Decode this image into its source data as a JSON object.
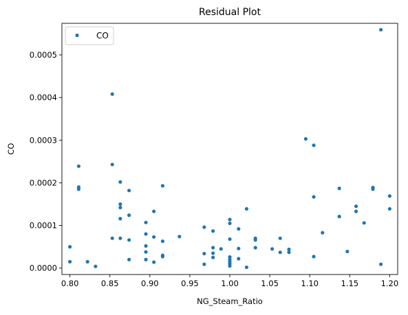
{
  "chart_data": {
    "type": "scatter",
    "title": "Residual Plot",
    "xlabel": "NG_Steam_Ratio",
    "ylabel": "CO",
    "xlim": [
      0.79,
      1.21
    ],
    "ylim": [
      -1.5e-05,
      0.000574
    ],
    "x_ticks": [
      0.8,
      0.85,
      0.9,
      0.95,
      1.0,
      1.05,
      1.1,
      1.15,
      1.2
    ],
    "x_tick_labels": [
      "0.80",
      "0.85",
      "0.90",
      "0.95",
      "1.00",
      "1.05",
      "1.10",
      "1.15",
      "1.20"
    ],
    "y_ticks": [
      0,
      0.0001,
      0.0002,
      0.0003,
      0.0004,
      0.0005
    ],
    "y_tick_labels": [
      "0.0000",
      "0.0001",
      "0.0002",
      "0.0003",
      "0.0004",
      "0.0005"
    ],
    "grid": false,
    "legend_position": "top-left",
    "series": [
      {
        "name": "CO",
        "color": "#1f77b4",
        "points": [
          [
            0.8,
            5e-05
          ],
          [
            0.8,
            1.5e-05
          ],
          [
            0.811,
            0.000239
          ],
          [
            0.811,
            0.00019
          ],
          [
            0.811,
            0.000185
          ],
          [
            0.822,
            1.5e-05
          ],
          [
            0.832,
            4e-06
          ],
          [
            0.853,
            0.000408
          ],
          [
            0.853,
            0.000243
          ],
          [
            0.853,
            7e-05
          ],
          [
            0.863,
            0.000202
          ],
          [
            0.863,
            0.00015
          ],
          [
            0.863,
            0.000142
          ],
          [
            0.863,
            0.000116
          ],
          [
            0.863,
            7e-05
          ],
          [
            0.874,
            0.000182
          ],
          [
            0.874,
            0.000124
          ],
          [
            0.874,
            6.6e-05
          ],
          [
            0.874,
            2e-05
          ],
          [
            0.895,
            0.000107
          ],
          [
            0.895,
            8e-05
          ],
          [
            0.895,
            5.2e-05
          ],
          [
            0.895,
            3.8e-05
          ],
          [
            0.895,
            2e-05
          ],
          [
            0.905,
            0.000133
          ],
          [
            0.905,
            7.3e-05
          ],
          [
            0.905,
            1.4e-05
          ],
          [
            0.916,
            0.000193
          ],
          [
            0.916,
            6.3e-05
          ],
          [
            0.916,
            3e-05
          ],
          [
            0.916,
            2.7e-05
          ],
          [
            0.937,
            7.4e-05
          ],
          [
            0.968,
            9.6e-05
          ],
          [
            0.968,
            3.4e-05
          ],
          [
            0.968,
            9e-06
          ],
          [
            0.979,
            8.7e-05
          ],
          [
            0.979,
            4.8e-05
          ],
          [
            0.979,
            3.5e-05
          ],
          [
            0.979,
            2.5e-05
          ],
          [
            0.989,
            4.5e-05
          ],
          [
            1.0,
            0.000114
          ],
          [
            1.0,
            0.000105
          ],
          [
            1.0,
            6.8e-05
          ],
          [
            1.0,
            2.6e-05
          ],
          [
            1.0,
            2e-05
          ],
          [
            1.0,
            1.5e-05
          ],
          [
            1.0,
            1e-05
          ],
          [
            1.0,
            5e-06
          ],
          [
            1.011,
            9.2e-05
          ],
          [
            1.011,
            4.6e-05
          ],
          [
            1.011,
            2.2e-05
          ],
          [
            1.021,
            0.000139
          ],
          [
            1.021,
            2e-06
          ],
          [
            1.032,
            7e-05
          ],
          [
            1.032,
            6.6e-05
          ],
          [
            1.032,
            4.8e-05
          ],
          [
            1.053,
            4.5e-05
          ],
          [
            1.063,
            7e-05
          ],
          [
            1.063,
            3.7e-05
          ],
          [
            1.074,
            4.4e-05
          ],
          [
            1.074,
            3.7e-05
          ],
          [
            1.095,
            0.000303
          ],
          [
            1.105,
            0.000288
          ],
          [
            1.105,
            0.000167
          ],
          [
            1.105,
            2.7e-05
          ],
          [
            1.116,
            8.3e-05
          ],
          [
            1.137,
            0.000187
          ],
          [
            1.137,
            0.000121
          ],
          [
            1.147,
            3.9e-05
          ],
          [
            1.158,
            0.000145
          ],
          [
            1.158,
            0.000133
          ],
          [
            1.168,
            0.000106
          ],
          [
            1.179,
            0.000189
          ],
          [
            1.179,
            0.000185
          ],
          [
            1.189,
            0.000559
          ],
          [
            1.189,
            9e-06
          ],
          [
            1.2,
            0.000169
          ],
          [
            1.2,
            0.000139
          ]
        ]
      }
    ]
  }
}
